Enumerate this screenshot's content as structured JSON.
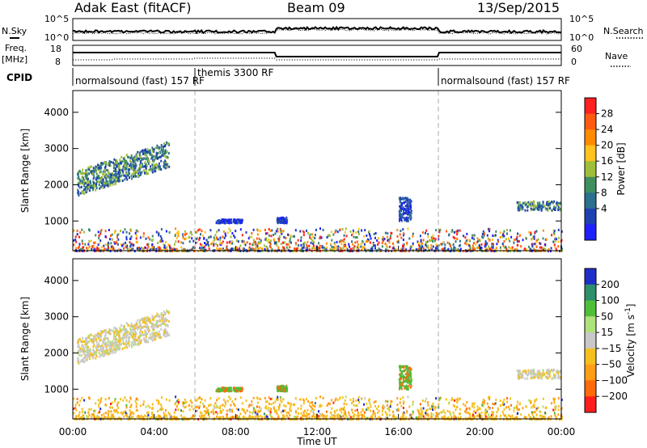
{
  "header": {
    "station": "Adak East (fitACF)",
    "beam": "Beam 09",
    "date": "13/Sep/2015"
  },
  "top_panels": {
    "noise_left_label": "N.Sky",
    "noise_left_ticks": [
      "10^5",
      "10^0"
    ],
    "noise_right_label": "N.Search",
    "noise_right_ticks": [
      "10^5",
      "10^0"
    ],
    "freq_left_label_1": "Freq.",
    "freq_left_label_2": "[MHz]",
    "freq_left_ticks": [
      "18",
      "8"
    ],
    "freq_right_label": "Nave",
    "freq_right_ticks": [
      "60",
      "0"
    ],
    "cpid_label": "CPID",
    "cpid_segments": [
      {
        "name": "normalsound (fast) 157 RF",
        "start_h": 0,
        "end_h": 6
      },
      {
        "name": "themis 3300 RF",
        "start_h": 6,
        "end_h": 18
      },
      {
        "name": "normalsound (fast) 157 RF",
        "start_h": 18,
        "end_h": 24
      }
    ]
  },
  "colorbars": {
    "power": {
      "label": "Power [dB]",
      "ticks": [
        "28",
        "24",
        "20",
        "16",
        "12",
        "8",
        "4"
      ],
      "colors": [
        "#ff2020",
        "#ff5a10",
        "#ff8c00",
        "#ffc21e",
        "#9fbf3a",
        "#3f8f5f",
        "#2d6f8f",
        "#1f3fb4",
        "#2020ff"
      ]
    },
    "velocity": {
      "label": "Velocity [m s",
      "label_sup": "-1",
      "label_end": "]",
      "ticks": [
        "200",
        "100",
        "50",
        "15",
        "−15",
        "−50",
        "−100",
        "−200"
      ],
      "colors": [
        "#1e2fc8",
        "#2f8f6a",
        "#4fbf3a",
        "#aee27a",
        "#c8c8c8",
        "#f5c01e",
        "#ff9d14",
        "#ff6a0a",
        "#ff1e1e"
      ]
    }
  },
  "chart_data": {
    "type": "heatmap",
    "title": "Adak East (fitACF)",
    "xlabel": "Time UT",
    "ylabel": "Slant Range [km]",
    "x_ticks": [
      "00:00",
      "04:00",
      "08:00",
      "12:00",
      "16:00",
      "20:00",
      "00:00"
    ],
    "xlim_hours": [
      0,
      24
    ],
    "y_ticks": [
      "4000",
      "3000",
      "2000",
      "1000"
    ],
    "ylim_km": [
      180,
      4600
    ],
    "mode_change_hours": [
      6,
      18
    ],
    "scatter_regions": [
      {
        "name": "ground/near-range scatter",
        "start_h": 0,
        "end_h": 24,
        "range_km": [
          180,
          800
        ]
      },
      {
        "name": "band 00-04 UT",
        "start_h": 0.2,
        "end_h": 4.7,
        "range_km": [
          1800,
          3300
        ]
      },
      {
        "name": "patch 07 UT",
        "start_h": 7.0,
        "end_h": 8.3,
        "range_km": [
          950,
          1050
        ]
      },
      {
        "name": "patch 10 UT",
        "start_h": 10.0,
        "end_h": 10.5,
        "range_km": [
          950,
          1100
        ]
      },
      {
        "name": "patch 16 UT",
        "start_h": 16.0,
        "end_h": 16.6,
        "range_km": [
          1000,
          1650
        ]
      },
      {
        "name": "band 22-24 UT",
        "start_h": 21.8,
        "end_h": 24,
        "range_km": [
          1300,
          1550
        ]
      }
    ]
  }
}
